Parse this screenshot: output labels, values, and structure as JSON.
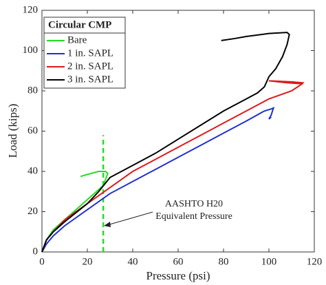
{
  "chart_data": {
    "type": "line",
    "xlabel": "Pressure (psi)",
    "ylabel": "Load (kips)",
    "xlim": [
      0,
      120
    ],
    "xticks": [
      0,
      20,
      40,
      60,
      80,
      100,
      120
    ],
    "ylim": [
      0,
      120
    ],
    "yticks": [
      0,
      20,
      40,
      60,
      80,
      100,
      120
    ],
    "legend_title": "Circular CMP",
    "legend": "upper left",
    "series": [
      {
        "name": "Bare",
        "color": "#22dd22",
        "x": [
          0,
          2,
          5,
          10,
          15,
          20,
          25,
          27,
          28,
          29,
          28,
          25,
          20,
          17
        ],
        "values": [
          0,
          6,
          11,
          16,
          21,
          26,
          31,
          33,
          36,
          39,
          40,
          40,
          38.5,
          37.5
        ]
      },
      {
        "name": "1 in. SAPL",
        "color": "#1f2fcf",
        "x": [
          0,
          2,
          5,
          10,
          20,
          30,
          40,
          50,
          60,
          70,
          80,
          90,
          98,
          101,
          102,
          101,
          100,
          101
        ],
        "values": [
          0,
          4,
          8,
          13,
          21,
          29,
          35,
          41,
          47,
          53,
          59,
          65,
          70,
          71,
          71.5,
          68,
          66,
          67
        ]
      },
      {
        "name": "2 in. SAPL",
        "color": "#e01818",
        "x": [
          0,
          2,
          5,
          10,
          20,
          30,
          40,
          50,
          60,
          70,
          80,
          90,
          100,
          110,
          114,
          115,
          110,
          100,
          108,
          115
        ],
        "values": [
          0,
          6,
          10,
          16,
          24,
          32,
          40,
          46,
          52,
          58,
          64,
          70,
          76,
          80,
          83,
          84,
          84.5,
          85,
          84,
          83.5
        ]
      },
      {
        "name": "3 in. SAPL",
        "color": "#000000",
        "x": [
          0,
          2,
          5,
          10,
          20,
          25,
          30,
          40,
          50,
          60,
          70,
          80,
          90,
          95,
          98,
          100,
          103,
          106,
          108,
          109,
          108,
          100,
          90,
          85,
          79
        ],
        "values": [
          0,
          6,
          10,
          15,
          24,
          30,
          37,
          43,
          49,
          56,
          63,
          70,
          76,
          79,
          82,
          87,
          91,
          97,
          103,
          108,
          109,
          108.5,
          107,
          106,
          105
        ]
      }
    ],
    "reference_line": {
      "x": 27,
      "y": [
        0,
        58
      ],
      "color": "#22dd22"
    },
    "annotation": [
      "AASHTO H20",
      "Equivalent Pressure"
    ]
  }
}
